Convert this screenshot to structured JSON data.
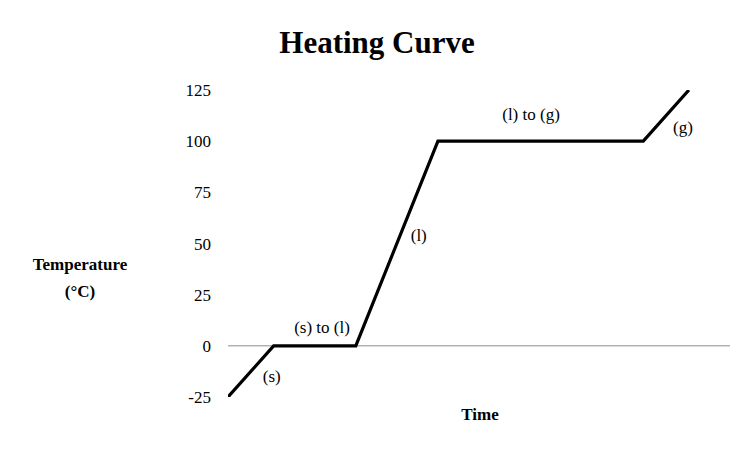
{
  "chart_data": {
    "type": "line",
    "title": "Heating Curve",
    "x_label": "Time",
    "y_label": "Temperature (°C)",
    "x": [
      0,
      1,
      2.8,
      4.6,
      9.1,
      10.1
    ],
    "values": [
      -25,
      0,
      0,
      100,
      100,
      125
    ],
    "color": "#000000",
    "xlim": [
      0,
      11
    ],
    "ylim": [
      -25,
      125
    ],
    "yticks": [
      -25,
      0,
      25,
      50,
      75,
      100,
      125
    ],
    "grid": false,
    "tick_labels": "y",
    "annotations": [
      {
        "text": "(s)",
        "x": 0.96,
        "y": -15
      },
      {
        "text": "(s) to (l)",
        "x": 2.06,
        "y": 9
      },
      {
        "text": "(l)",
        "x": 4.18,
        "y": 54
      },
      {
        "text": "(l) to (g)",
        "x": 6.64,
        "y": 113
      },
      {
        "text": "(g)",
        "x": 9.97,
        "y": 106.5
      }
    ]
  }
}
